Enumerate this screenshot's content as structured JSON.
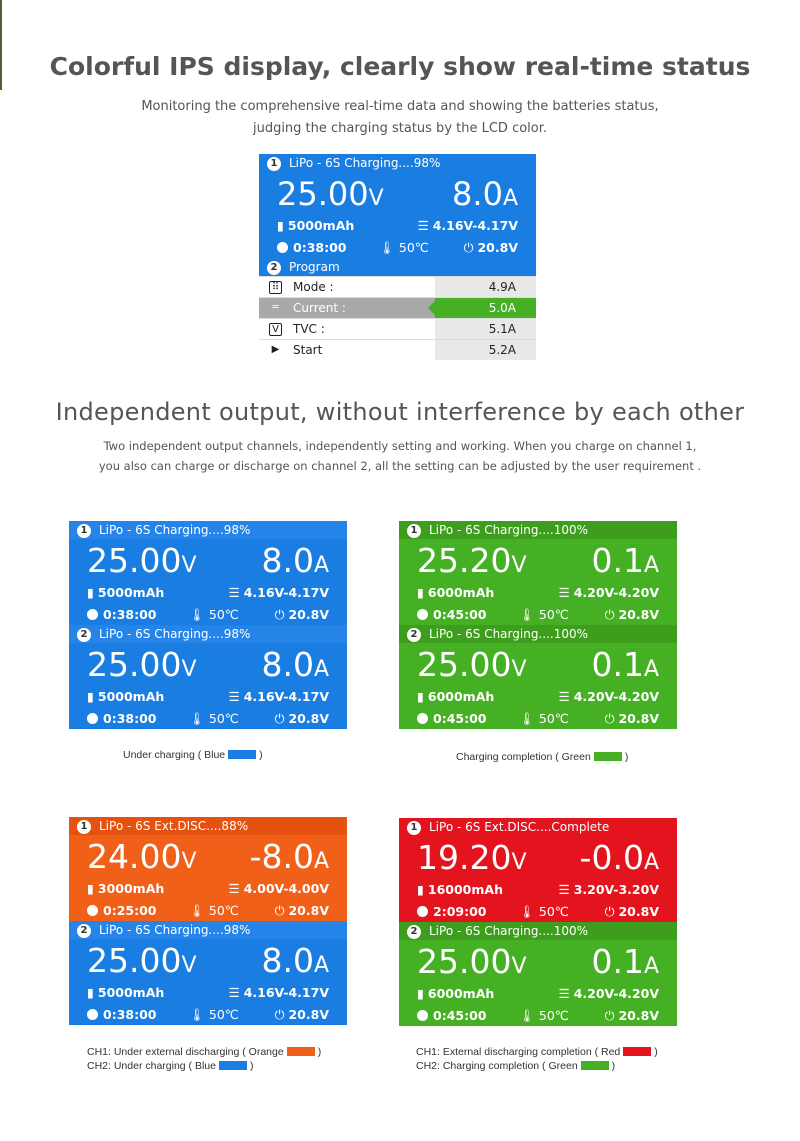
{
  "heading1": "Colorful IPS display, clearly show real-time status",
  "sub1_line1": "Monitoring the comprehensive real-time data and showing the batteries status,",
  "sub1_line2": "judging the charging status by the LCD color.",
  "heading2": "Independent output, without interference by each other",
  "sub2_line1": "Two independent output channels, independently setting and working. When you charge on channel 1,",
  "sub2_line2": "you also can charge or discharge on channel 2, all the setting can be adjusted by the user requirement .",
  "colors": {
    "blue": "#1a7de2",
    "green": "#46b025",
    "orange": "#f06018",
    "red": "#e4141e"
  },
  "top": {
    "header": "LiPo - 6S Charging....98%",
    "voltage": "25.00",
    "current": "8.0",
    "v_unit": "V",
    "a_unit": "A",
    "capacity": "5000mAh",
    "cells": "4.16V-4.17V",
    "time": "0:38:00",
    "temp": "50℃",
    "input": "20.8V",
    "program_label": "Program",
    "rows": [
      {
        "icon": "mode-icon",
        "label": "Mode   :",
        "value": "4.9A"
      },
      {
        "icon": "current-icon",
        "label": "Current :",
        "value": "5.0A"
      },
      {
        "icon": "tvc-icon",
        "label": "TVC     :",
        "value": "5.1A"
      },
      {
        "icon": "start-icon",
        "label": "Start",
        "value": "5.2A"
      }
    ]
  },
  "panels": [
    {
      "blocks": [
        {
          "header": "LiPo - 6S Charging....98%",
          "voltage": "25.00",
          "current": "8.0",
          "capacity": "5000mAh",
          "cells": "4.16V-4.17V",
          "time": "0:38:00",
          "temp": "50℃",
          "input": "20.8V"
        },
        {
          "header": "LiPo - 6S Charging....98%",
          "voltage": "25.00",
          "current": "8.0",
          "capacity": "5000mAh",
          "cells": "4.16V-4.17V",
          "time": "0:38:00",
          "temp": "50℃",
          "input": "20.8V"
        }
      ],
      "caption1": "Under charging ( Blue",
      "caption1_end": ")"
    },
    {
      "blocks": [
        {
          "header": "LiPo - 6S Charging....100%",
          "voltage": "25.20",
          "current": "0.1",
          "capacity": "6000mAh",
          "cells": "4.20V-4.20V",
          "time": "0:45:00",
          "temp": "50℃",
          "input": "20.8V"
        },
        {
          "header": "LiPo - 6S Charging....100%",
          "voltage": "25.00",
          "current": "0.1",
          "capacity": "6000mAh",
          "cells": "4.20V-4.20V",
          "time": "0:45:00",
          "temp": "50℃",
          "input": "20.8V"
        }
      ],
      "caption1": "Charging completion ( Green",
      "caption1_end": ")"
    },
    {
      "blocks": [
        {
          "header": "LiPo - 6S Ext.DISC....88%",
          "voltage": "24.00",
          "current": "-8.0",
          "capacity": "3000mAh",
          "cells": "4.00V-4.00V",
          "time": "0:25:00",
          "temp": "50℃",
          "input": "20.8V"
        },
        {
          "header": "LiPo - 6S Charging....98%",
          "voltage": "25.00",
          "current": "8.0",
          "capacity": "5000mAh",
          "cells": "4.16V-4.17V",
          "time": "0:38:00",
          "temp": "50℃",
          "input": "20.8V"
        }
      ],
      "caption1": "CH1: Under external discharging ( Orange",
      "caption1_end": ")",
      "caption2": "CH2: Under charging ( Blue",
      "caption2_end": ")"
    },
    {
      "blocks": [
        {
          "header": "LiPo - 6S Ext.DISC....Complete",
          "voltage": "19.20",
          "current": "-0.0",
          "capacity": "16000mAh",
          "cells": "3.20V-3.20V",
          "time": "2:09:00",
          "temp": "50℃",
          "input": "20.8V"
        },
        {
          "header": "LiPo - 6S Charging....100%",
          "voltage": "25.00",
          "current": "0.1",
          "capacity": "6000mAh",
          "cells": "4.20V-4.20V",
          "time": "0:45:00",
          "temp": "50℃",
          "input": "20.8V"
        }
      ],
      "caption1": "CH1: External discharging completion ( Red",
      "caption1_end": ")",
      "caption2": "CH2: Charging completion ( Green",
      "caption2_end": ")"
    }
  ]
}
